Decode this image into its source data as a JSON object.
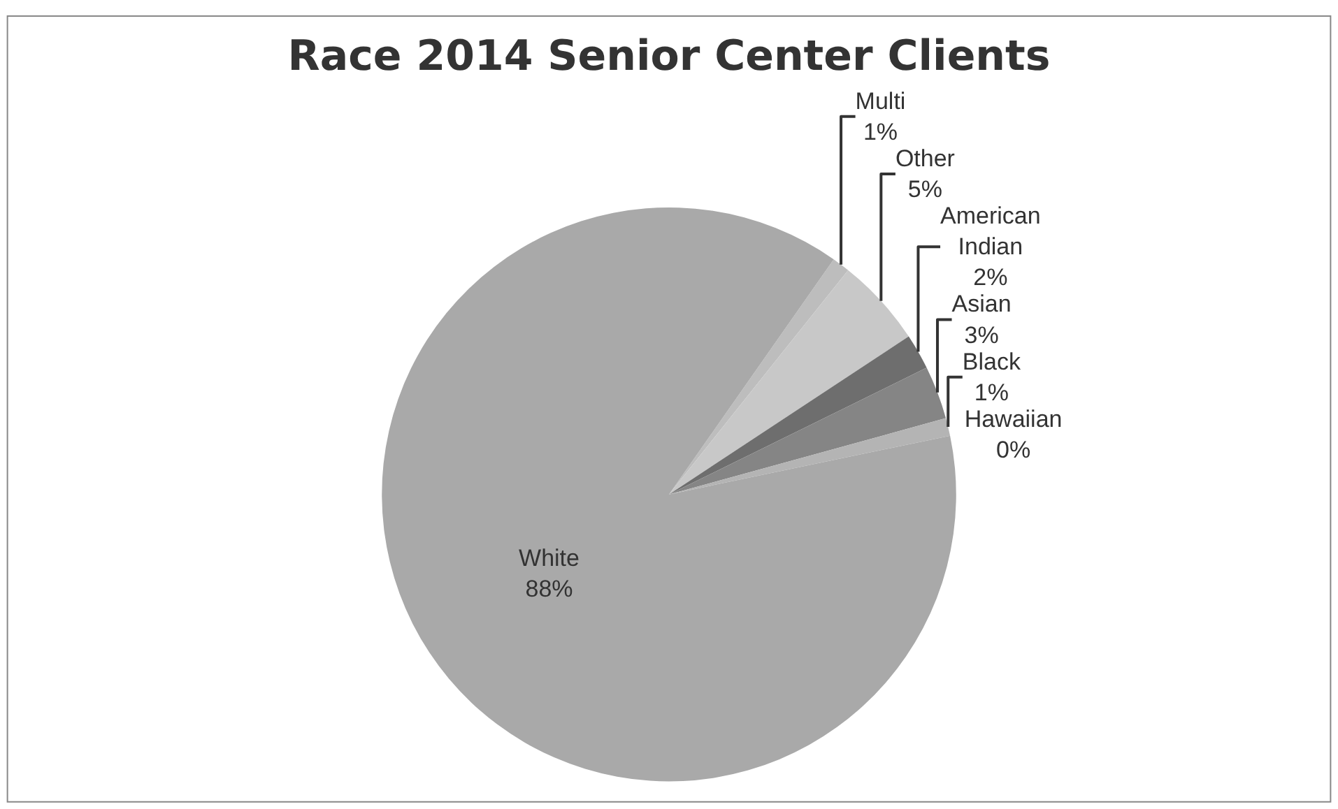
{
  "chart_data": {
    "type": "pie",
    "title": "Race 2014 Senior Center Clients",
    "categories": [
      "Multi",
      "Other",
      "American Indian",
      "Asian",
      "Black",
      "Hawaiian",
      "White"
    ],
    "values": [
      1,
      5,
      2,
      3,
      1,
      0,
      88
    ],
    "value_labels": [
      "1%",
      "5%",
      "2%",
      "3%",
      "1%",
      "0%",
      "88%"
    ],
    "colors": [
      "#bdbdbd",
      "#c8c8c8",
      "#6e6e6e",
      "#858585",
      "#b4b4b4",
      "#999999",
      "#a9a9a9"
    ],
    "legend": false
  }
}
